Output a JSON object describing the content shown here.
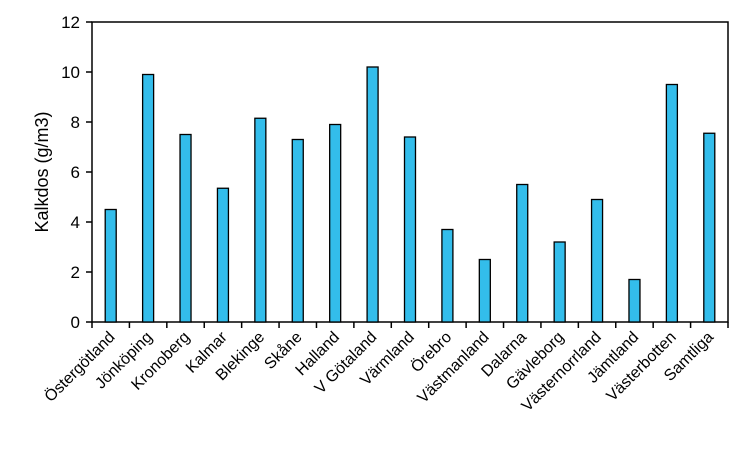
{
  "chart_data": {
    "type": "bar",
    "title": "",
    "xlabel": "",
    "ylabel": "Kalkdos (g/m3)",
    "ylim": [
      0,
      12
    ],
    "yticks": [
      0,
      2,
      4,
      6,
      8,
      10,
      12
    ],
    "grid": false,
    "legend": "none",
    "bar_color": "#33BDEB",
    "categories": [
      "Östergötland",
      "Jönköping",
      "Kronoberg",
      "Kalmar",
      "Blekinge",
      "Skåne",
      "Halland",
      "V Götaland",
      "Värmland",
      "Örebro",
      "Västmanland",
      "Dalarna",
      "Gävleborg",
      "Västernorrland",
      "Jämtland",
      "Västerbotten",
      "Samtliga"
    ],
    "values": [
      4.5,
      9.9,
      7.5,
      5.35,
      8.15,
      7.3,
      7.9,
      10.2,
      7.4,
      3.7,
      2.5,
      5.5,
      3.2,
      4.9,
      1.7,
      9.5,
      7.55
    ]
  }
}
